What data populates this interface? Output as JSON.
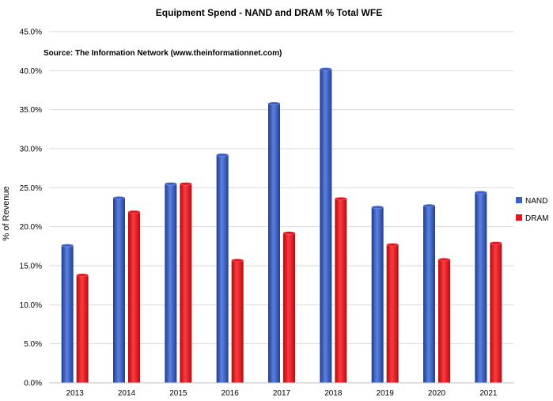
{
  "chart_data": {
    "type": "bar",
    "title": "Equipment Spend - NAND and DRAM % Total WFE",
    "source": "Source: The Information Network (www.theinformationnet.com)",
    "xlabel": "",
    "ylabel": "% of Revenue",
    "ylim": [
      0,
      45
    ],
    "ytick_step": 5,
    "yticks": [
      "0.0%",
      "5.0%",
      "10.0%",
      "15.0%",
      "20.0%",
      "25.0%",
      "30.0%",
      "35.0%",
      "40.0%",
      "45.0%"
    ],
    "grid": true,
    "legend_position": "right",
    "categories": [
      "2013",
      "2014",
      "2015",
      "2016",
      "2017",
      "2018",
      "2019",
      "2020",
      "2021"
    ],
    "series": [
      {
        "name": "NAND",
        "color": "#3a5fc8",
        "values": [
          17.6,
          23.7,
          25.5,
          29.2,
          35.8,
          40.2,
          22.5,
          22.7,
          24.4
        ]
      },
      {
        "name": "DRAM",
        "color": "#e8141c",
        "values": [
          13.8,
          21.9,
          25.5,
          15.7,
          19.2,
          23.6,
          17.7,
          15.8,
          17.9
        ]
      }
    ]
  }
}
